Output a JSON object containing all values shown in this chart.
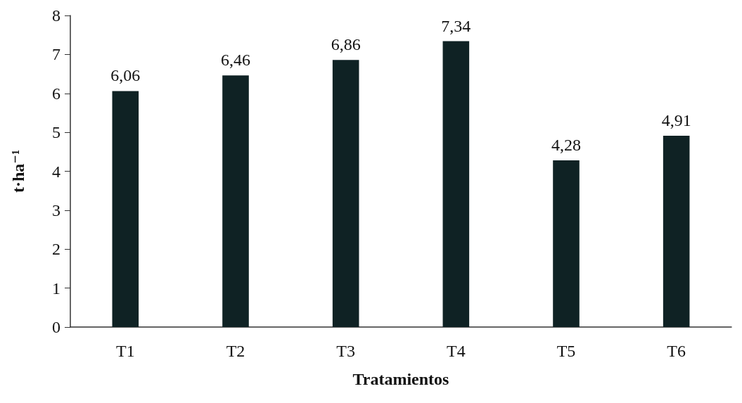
{
  "chart_data": {
    "type": "bar",
    "xlabel": "Tratamientos",
    "ylabel": "t·ha⁻¹",
    "categories": [
      "T1",
      "T2",
      "T3",
      "T4",
      "T5",
      "T6"
    ],
    "values": [
      6.06,
      6.46,
      6.86,
      7.34,
      4.28,
      4.91
    ],
    "value_labels": [
      "6,06",
      "6,46",
      "6,86",
      "7,34",
      "4,28",
      "4,91"
    ],
    "color": "#0f2224",
    "ylim": [
      0,
      8
    ],
    "yticks": [
      0,
      1,
      2,
      3,
      4,
      5,
      6,
      7,
      8
    ]
  }
}
